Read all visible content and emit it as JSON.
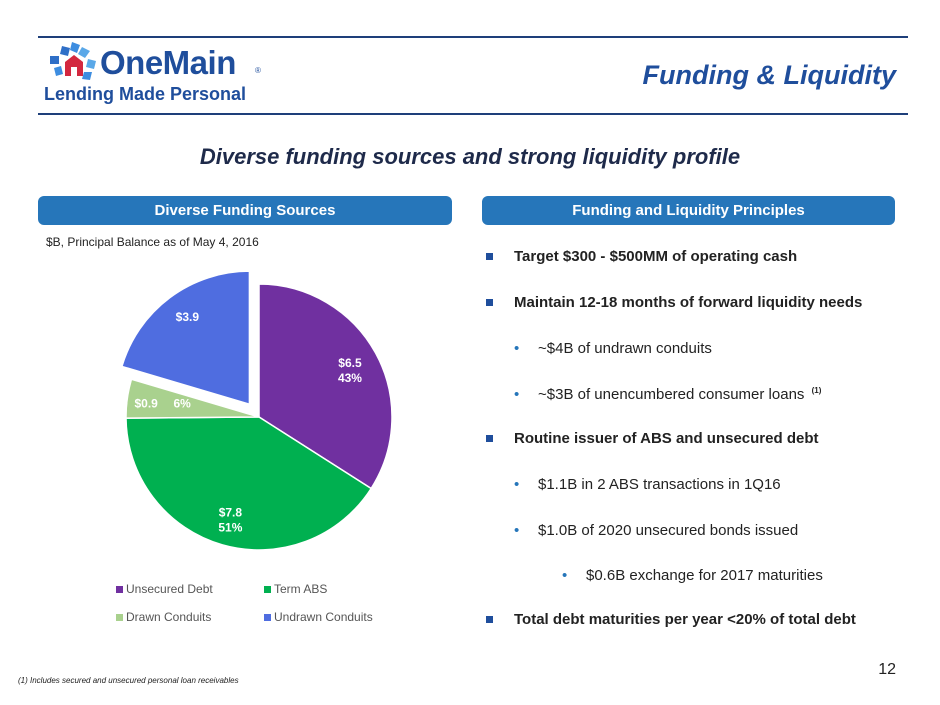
{
  "header": {
    "logo_word": "OneMain",
    "logo_reg": "®",
    "logo_tagline": "Lending Made Personal",
    "title": "Funding & Liquidity"
  },
  "subtitle": "Diverse funding sources and strong liquidity profile",
  "left_panel": {
    "banner": "Diverse Funding Sources",
    "units_note": "$B, Principal Balance as of May 4, 2016"
  },
  "right_panel": {
    "banner": "Funding and Liquidity Principles",
    "bullets": [
      {
        "level": 1,
        "text": "Target $300 - $500MM of operating cash"
      },
      {
        "level": 1,
        "text": "Maintain 12-18 months of forward liquidity needs"
      },
      {
        "level": 2,
        "text": "~$4B of undrawn conduits"
      },
      {
        "level": 2,
        "text": "~$3B of unencumbered consumer loans",
        "footnote_ref": "(1)"
      },
      {
        "level": 1,
        "text": "Routine issuer of ABS and unsecured debt"
      },
      {
        "level": 2,
        "text": "$1.1B in 2 ABS transactions in 1Q16"
      },
      {
        "level": 2,
        "text": "$1.0B of 2020 unsecured bonds issued"
      },
      {
        "level": 3,
        "text": "$0.6B exchange for 2017 maturities"
      },
      {
        "level": 1,
        "text": "Total debt maturities per year <20% of total debt"
      }
    ],
    "bullet_glyph": "•"
  },
  "chart_data": {
    "type": "pie",
    "series_colors": [
      "#7030a0",
      "#00b050",
      "#a9d18e",
      "#4f6de0"
    ],
    "slices": [
      {
        "name": "Unsecured Debt",
        "value": 6.5,
        "label": "$6.5",
        "pct_label": "43%",
        "exploded": false
      },
      {
        "name": "Term ABS",
        "value": 7.8,
        "label": "$7.8",
        "pct_label": "51%",
        "exploded": false
      },
      {
        "name": "Drawn Conduits",
        "value": 0.9,
        "label": "$0.9",
        "pct_label": "6%",
        "exploded": false
      },
      {
        "name": "Undrawn Conduits",
        "value": 3.9,
        "label": "$3.9",
        "pct_label": "",
        "exploded": true
      }
    ],
    "legend_position": "bottom"
  },
  "page_number": "12",
  "footnote": "(1) Includes secured and unsecured personal loan receivables"
}
